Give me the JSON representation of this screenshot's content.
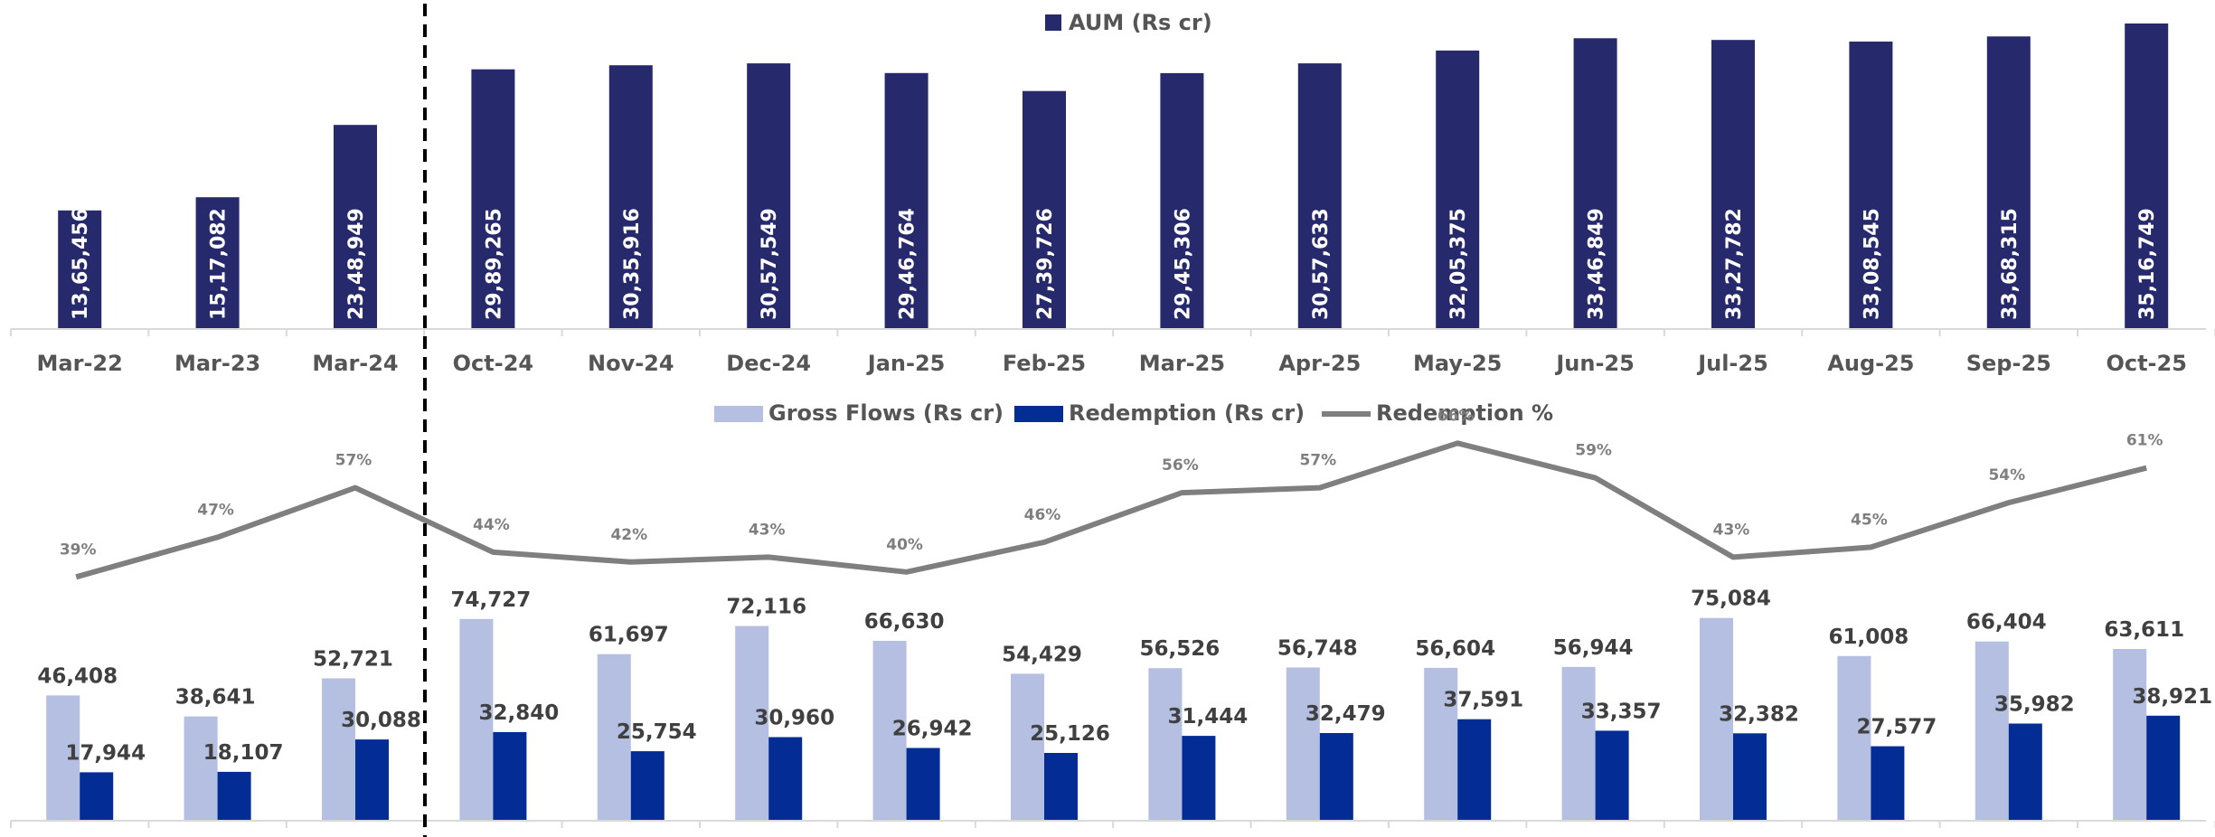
{
  "chart_data": [
    {
      "type": "bar",
      "categories": [
        "Mar-22",
        "Mar-23",
        "Mar-24",
        "Oct-24",
        "Nov-24",
        "Dec-24",
        "Jan-25",
        "Feb-25",
        "Mar-25",
        "Apr-25",
        "May-25",
        "Jun-25",
        "Jul-25",
        "Aug-25",
        "Sep-25",
        "Oct-25"
      ],
      "series": [
        {
          "name": "AUM (Rs cr)",
          "values": [
            1365456,
            1517082,
            2348949,
            2989265,
            3035916,
            3057549,
            2946764,
            2739726,
            2945306,
            3057633,
            3205375,
            3346849,
            3327782,
            3308545,
            3368315,
            3516749
          ],
          "labels": [
            "13,65,456",
            "15,17,082",
            "23,48,949",
            "29,89,265",
            "30,35,916",
            "30,57,549",
            "29,46,764",
            "27,39,726",
            "29,45,306",
            "30,57,633",
            "32,05,375",
            "33,46,849",
            "33,27,782",
            "33,08,545",
            "33,68,315",
            "35,16,749"
          ],
          "color": "#27296d"
        }
      ],
      "legend": "top-center",
      "ylim": [
        0,
        3600000
      ],
      "grid": false
    },
    {
      "type": "bar",
      "categories": [
        "Mar-22",
        "Mar-23",
        "Mar-24",
        "Oct-24",
        "Nov-24",
        "Dec-24",
        "Jan-25",
        "Feb-25",
        "Mar-25",
        "Apr-25",
        "May-25",
        "Jun-25",
        "Jul-25",
        "Aug-25",
        "Sep-25",
        "Oct-25"
      ],
      "series": [
        {
          "name": "Gross Flows (Rs cr)",
          "values": [
            46408,
            38641,
            52721,
            74727,
            61697,
            72116,
            66630,
            54429,
            56526,
            56748,
            56604,
            56944,
            75084,
            61008,
            66404,
            63611
          ],
          "labels": [
            "46,408",
            "38,641",
            "52,721",
            "74,727",
            "61,697",
            "72,116",
            "66,630",
            "54,429",
            "56,526",
            "56,748",
            "56,604",
            "56,944",
            "75,084",
            "61,008",
            "66,404",
            "63,611"
          ],
          "color": "#b4bfe2"
        },
        {
          "name": "Redemption (Rs cr)",
          "values": [
            17944,
            18107,
            30088,
            32840,
            25754,
            30960,
            26942,
            25126,
            31444,
            32479,
            37591,
            33357,
            32382,
            27577,
            35982,
            38921
          ],
          "labels": [
            "17,944",
            "18,107",
            "30,088",
            "32,840",
            "25,754",
            "30,960",
            "26,942",
            "25,126",
            "31,444",
            "32,479",
            "37,591",
            "33,357",
            "32,382",
            "27,577",
            "35,982",
            "38,921"
          ],
          "color": "#032c94"
        },
        {
          "name": "Redemption %",
          "type": "line",
          "values": [
            39,
            47,
            57,
            44,
            42,
            43,
            40,
            46,
            56,
            57,
            66,
            59,
            43,
            45,
            54,
            61
          ],
          "labels": [
            "39%",
            "47%",
            "57%",
            "44%",
            "42%",
            "43%",
            "40%",
            "46%",
            "56%",
            "57%",
            "66%",
            "59%",
            "43%",
            "45%",
            "54%",
            "61%"
          ],
          "color": "#7f7f7f"
        }
      ],
      "legend": "top-center",
      "ylim": [
        0,
        80000
      ],
      "grid": false
    }
  ]
}
